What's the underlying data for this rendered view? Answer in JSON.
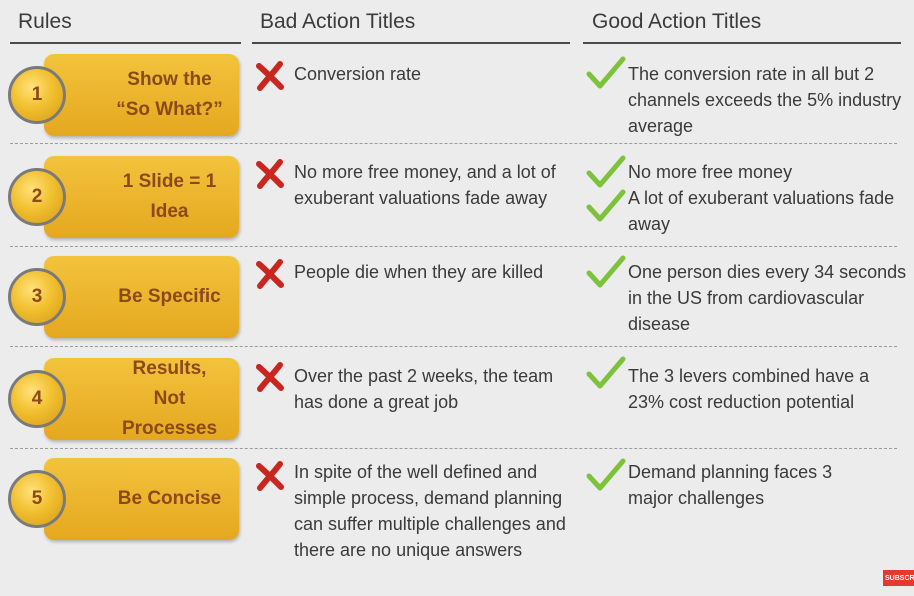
{
  "headers": {
    "rules": "Rules",
    "bad": "Bad Action Titles",
    "good": "Good Action Titles"
  },
  "rows": [
    {
      "number": "1",
      "rule": "Show the\n“So What?”",
      "bad": [
        "Conversion rate"
      ],
      "good": [
        "The conversion rate in all but 2 channels exceeds the 5% industry average"
      ]
    },
    {
      "number": "2",
      "rule": "1 Slide = 1 Idea",
      "bad": [
        "No more free money, and a lot of exuberant valuations fade away"
      ],
      "good": [
        "No more free money",
        "A lot of exuberant valuations fade away"
      ]
    },
    {
      "number": "3",
      "rule": "Be Specific",
      "bad": [
        "People die when they are killed"
      ],
      "good": [
        "One person dies every 34 seconds in the US from cardiovascular disease"
      ]
    },
    {
      "number": "4",
      "rule": "Results,\nNot Processes",
      "bad": [
        "Over the past 2 weeks, the team has done a great job"
      ],
      "good": [
        "The 3 levers combined have a 23% cost reduction potential"
      ]
    },
    {
      "number": "5",
      "rule": "Be Concise",
      "bad": [
        "In spite of the well defined and simple process, demand planning can suffer multiple challenges and there are no unique answers"
      ],
      "good": [
        "Demand planning faces 3 major challenges"
      ]
    }
  ],
  "overlay": {
    "subscribe_label": "SUBSCRIBE"
  },
  "colors": {
    "pill": "#e9b12a",
    "pill_text": "#8a4a1a",
    "cross": "#c8261e",
    "check": "#7cc23a"
  }
}
